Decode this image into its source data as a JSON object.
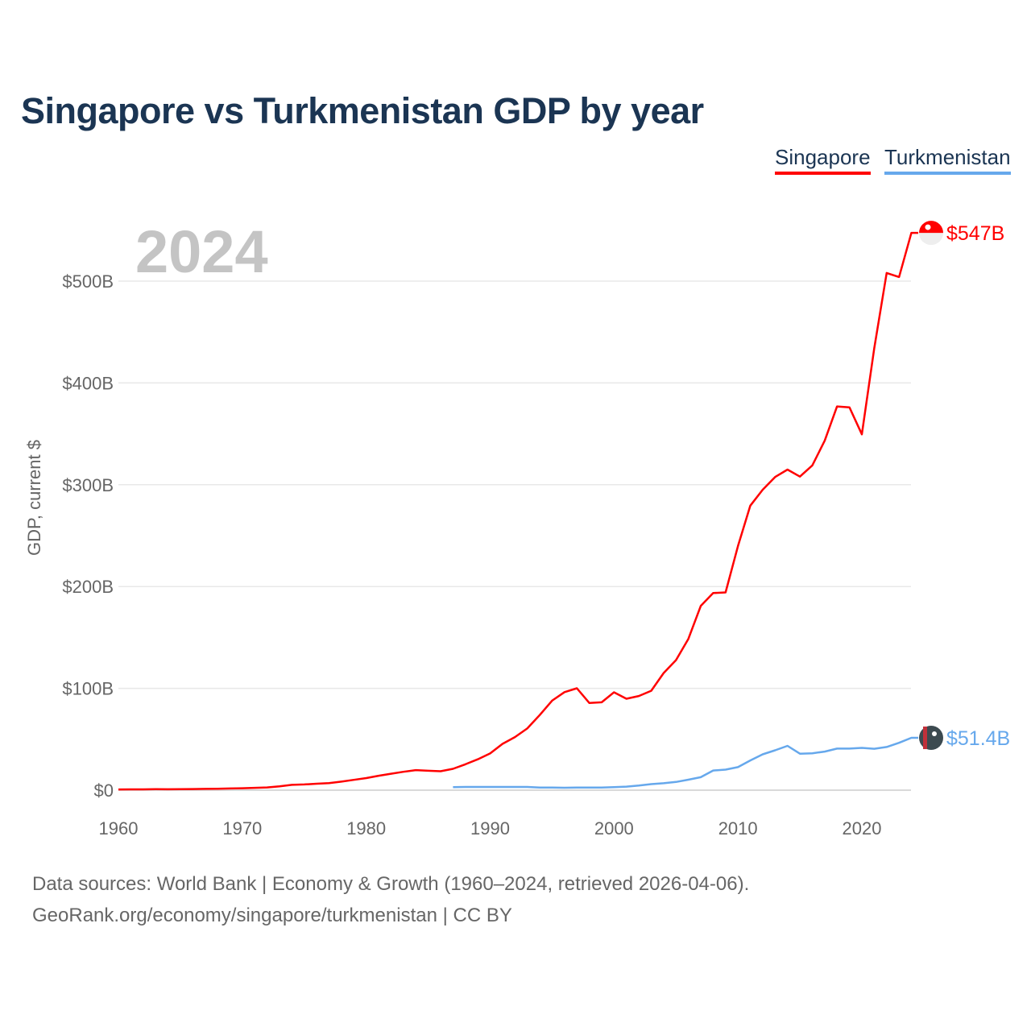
{
  "title": "Singapore vs Turkmenistan GDP by year",
  "legend": [
    "Singapore",
    "Turkmenistan"
  ],
  "footer": {
    "line1": "Data sources: World Bank | Economy & Growth (1960–2024, retrieved 2026-04-06).",
    "line2": "GeoRank.org/economy/singapore/turkmenistan | CC BY"
  },
  "chart_data": {
    "type": "line",
    "title": "Singapore vs Turkmenistan GDP by year",
    "xlabel": "",
    "ylabel": "GDP, current $",
    "year_watermark": "2024",
    "xlim": [
      1960,
      2024
    ],
    "ylim": [
      0,
      560
    ],
    "x_ticks": [
      1960,
      1970,
      1980,
      1990,
      2000,
      2010,
      2020
    ],
    "y_ticks": [
      0,
      100,
      200,
      300,
      400,
      500
    ],
    "y_tick_labels": [
      "$0",
      "$100B",
      "$200B",
      "$300B",
      "$400B",
      "$500B"
    ],
    "grid": true,
    "legend_position": "top-right",
    "units": "billion USD",
    "series": [
      {
        "name": "Singapore",
        "color": "#ff0000",
        "end_label": "$547B",
        "start_year": 1960,
        "values": [
          0.7,
          0.76,
          0.82,
          0.92,
          0.89,
          0.97,
          1.08,
          1.24,
          1.43,
          1.69,
          1.92,
          2.26,
          2.72,
          3.69,
          5.22,
          5.63,
          6.33,
          6.85,
          8.37,
          10.1,
          11.9,
          14.2,
          16.1,
          18.0,
          19.7,
          19.1,
          18.6,
          21.0,
          25.4,
          30.3,
          36.1,
          45.5,
          52.1,
          60.6,
          73.7,
          87.9,
          96.3,
          100.1,
          85.7,
          86.3,
          96.1,
          89.8,
          92.5,
          97.6,
          115.0,
          127.8,
          148.6,
          180.9,
          193.6,
          194.2,
          239.8,
          279.4,
          295.1,
          307.6,
          314.9,
          308.0,
          319.0,
          343.3,
          376.9,
          376.0,
          349.5,
          434.1,
          508.0,
          504.0,
          547.4
        ]
      },
      {
        "name": "Turkmenistan",
        "color": "#66a8ec",
        "end_label": "$51.4B",
        "start_year": 1987,
        "values": [
          2.9,
          3.2,
          3.2,
          3.2,
          3.2,
          3.2,
          3.2,
          2.6,
          2.5,
          2.4,
          2.5,
          2.6,
          2.6,
          2.9,
          3.5,
          4.5,
          5.9,
          6.8,
          8.1,
          10.3,
          12.7,
          19.3,
          20.2,
          22.6,
          29.2,
          35.2,
          39.2,
          43.5,
          35.8,
          36.2,
          37.9,
          40.8,
          40.8,
          41.5,
          40.7,
          42.4,
          46.5,
          51.4
        ]
      }
    ]
  }
}
